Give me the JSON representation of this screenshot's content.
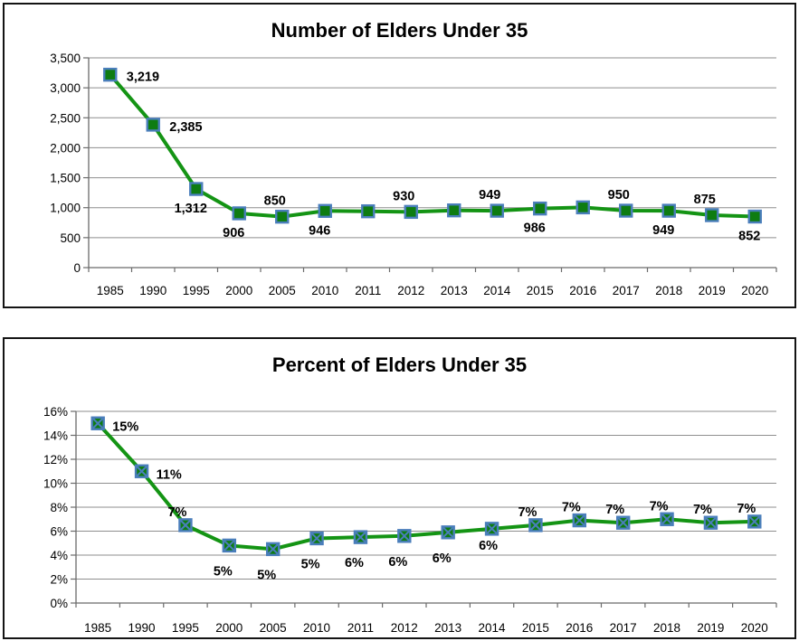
{
  "window": {
    "background": "#ffffff"
  },
  "colors": {
    "line_green": "#149414",
    "marker_green": "#0e7c12",
    "marker_border_blue": "#4a7ebb",
    "gridline_gray": "#8e8e8e",
    "axis_gray": "#6b6b6b",
    "label_black": "#000000",
    "frame_black": "#141414"
  },
  "chart_data": [
    {
      "type": "line",
      "title": "Number of Elders Under 35",
      "categories": [
        "1985",
        "1990",
        "1995",
        "2000",
        "2005",
        "2010",
        "2011",
        "2012",
        "2013",
        "2014",
        "2015",
        "2016",
        "2017",
        "2018",
        "2019",
        "2020"
      ],
      "values": [
        3219,
        2385,
        1312,
        906,
        850,
        946,
        940,
        930,
        955,
        949,
        986,
        1005,
        950,
        949,
        875,
        852
      ],
      "point_labels": [
        "3,219",
        "2,385",
        "1,312",
        "906",
        "850",
        "946",
        "",
        "930",
        "",
        "949",
        "986",
        "",
        "950",
        "949",
        "875",
        "852"
      ],
      "point_label_positions": [
        "right",
        "right",
        "below",
        "below",
        "above",
        "below",
        "none",
        "above",
        "none",
        "above",
        "below",
        "none",
        "above",
        "below",
        "above",
        "below"
      ],
      "y_tick_labels": [
        "3,500",
        "3,000",
        "2,500",
        "2,000",
        "1,500",
        "1,000",
        "500",
        "0"
      ],
      "ylim": [
        0,
        3500
      ],
      "xlabel": "",
      "ylabel": "",
      "grid": true,
      "legend": "none",
      "marker": "square"
    },
    {
      "type": "line",
      "title": "Percent of Elders Under 35",
      "categories": [
        "1985",
        "1990",
        "1995",
        "2000",
        "2005",
        "2010",
        "2011",
        "2012",
        "2013",
        "2014",
        "2015",
        "2016",
        "2017",
        "2018",
        "2019",
        "2020"
      ],
      "values": [
        15.0,
        11.0,
        6.5,
        4.8,
        4.5,
        5.4,
        5.5,
        5.6,
        5.9,
        6.2,
        6.5,
        6.9,
        6.7,
        7.0,
        6.7,
        6.8
      ],
      "point_labels": [
        "15%",
        "11%",
        "7%",
        "5%",
        "5%",
        "5%",
        "6%",
        "6%",
        "6%",
        "6%",
        "7%",
        "7%",
        "7%",
        "7%",
        "7%",
        "7%"
      ],
      "point_label_positions": [
        "right",
        "right",
        "above",
        "below",
        "below",
        "below",
        "below",
        "below",
        "below",
        "below-near",
        "above",
        "above",
        "above",
        "above",
        "above",
        "above"
      ],
      "y_tick_labels": [
        "16%",
        "14%",
        "12%",
        "10%",
        "8%",
        "6%",
        "4%",
        "2%",
        "0%"
      ],
      "ylim": [
        0,
        16
      ],
      "xlabel": "",
      "ylabel": "",
      "grid": true,
      "legend": "none",
      "marker": "square-x"
    }
  ]
}
